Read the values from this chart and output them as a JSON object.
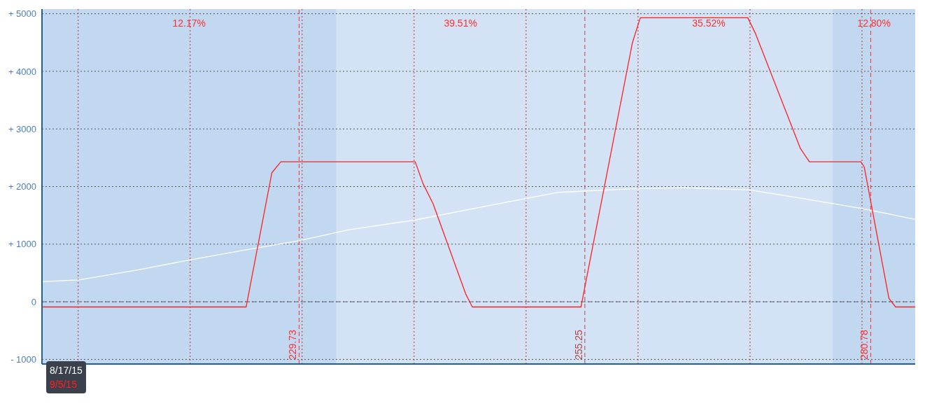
{
  "chart_data": {
    "type": "line",
    "xlim": [
      206.77,
      284.75
    ],
    "xticks": [
      {
        "value": 210,
        "label": null
      },
      {
        "value": 220,
        "label": null
      },
      {
        "value": 230,
        "label": null
      },
      {
        "value": 240,
        "label": null
      },
      {
        "value": 250,
        "label": null
      },
      {
        "value": 260,
        "label": null
      },
      {
        "value": 270,
        "label": null
      },
      {
        "value": 280,
        "label": null
      }
    ],
    "ylim": [
      -1080,
      5080
    ],
    "yticks": [
      {
        "value": -1000,
        "label": "- 1000"
      },
      0,
      {
        "value": 1000,
        "label": "+ 1000"
      },
      {
        "value": 2000,
        "label": "+ 2000"
      },
      {
        "value": 3000,
        "label": "+ 3000"
      },
      {
        "value": 4000,
        "label": "+ 4000"
      },
      {
        "value": 5000,
        "label": "+ 5000"
      }
    ],
    "tick_labels": "y",
    "grid": true,
    "legend": "bottom left",
    "marker": "none",
    "line_style": "solid",
    "series": [
      {
        "name": "8/17/15",
        "color": "#ffffff",
        "x": [
          206.77,
          210.08,
          215.5,
          220.06,
          224.9,
          229.73,
          234.2,
          240.1,
          246.7,
          252.9,
          259.2,
          264.2,
          270.0,
          274.8,
          280.0,
          284.75
        ],
        "values": [
          350,
          380,
          560,
          730,
          900,
          1060,
          1250,
          1420,
          1670,
          1900,
          1960,
          1980,
          1940,
          1790,
          1620,
          1430
        ]
      },
      {
        "name": "9/5/15",
        "color": "#ff2020",
        "x": [
          206.77,
          225.0,
          227.3,
          228.1,
          240.1,
          240.8,
          241.7,
          244.6,
          245.2,
          254.9,
          259.5,
          260.2,
          269.8,
          270.5,
          274.5,
          275.3,
          279.9,
          280.2,
          282.4,
          283.0,
          284.75
        ],
        "values": [
          -90,
          -90,
          2240,
          2430,
          2430,
          2050,
          1700,
          140,
          -90,
          -90,
          4500,
          4930,
          4930,
          4650,
          2660,
          2430,
          2430,
          2340,
          60,
          -90,
          -90
        ]
      }
    ],
    "bands": [
      {
        "axis": "x",
        "from": 233.04,
        "to": 277.39,
        "color": "#d3e3f5"
      }
    ],
    "ref_lines": [
      {
        "axis": "x",
        "value": 229.73,
        "label": "229.73",
        "color": "#ff3030",
        "line_style": "dashed"
      },
      {
        "axis": "x",
        "value": 255.25,
        "label": "255.25",
        "color": "#b04848",
        "line_style": "dashed"
      },
      {
        "axis": "x",
        "value": 280.78,
        "label": "280.78",
        "color": "#ff3030",
        "line_style": "dashed"
      },
      {
        "axis": "y",
        "value": 0,
        "color": "#666677",
        "line_style": "dashed"
      }
    ],
    "annotations": [
      "12.17%",
      "39.51%",
      "35.52%",
      "12.80%"
    ]
  }
}
